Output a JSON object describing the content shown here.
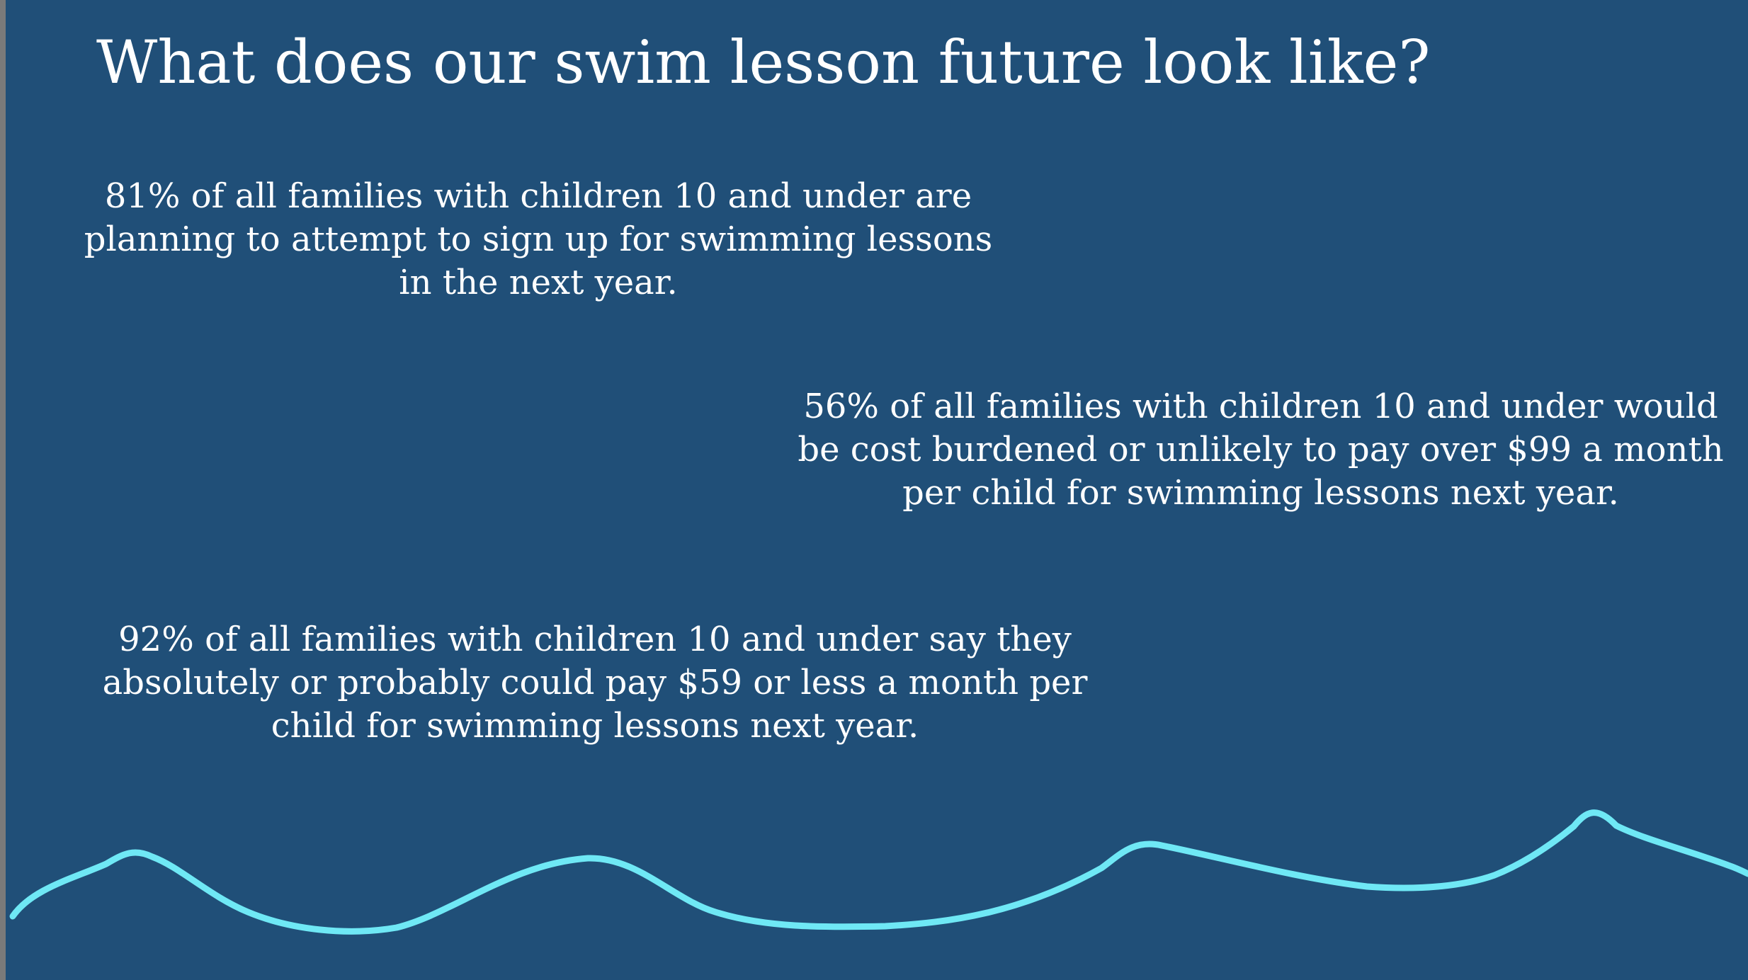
{
  "slide": {
    "title": "What does our swim lesson future look like?",
    "stats": [
      {
        "lines": [
          "81% of all families with children 10 and under are",
          "planning to attempt to sign up for swimming lessons",
          "in the next year."
        ]
      },
      {
        "lines": [
          "56% of all families with children 10 and under would",
          "be cost burdened or unlikely to pay over $99 a month",
          "per child for swimming lessons next year."
        ]
      },
      {
        "lines": [
          "92% of all families with children 10 and under say they",
          "absolutely or probably could pay $59 or less a month per",
          "child for swimming lessons next year."
        ]
      }
    ]
  },
  "colors": {
    "background": "#204f78",
    "text": "#ffffff",
    "wave": "#6fe8f5",
    "left_edge": "#7a7a7a"
  },
  "icons": {
    "decoration": "wave-line"
  }
}
